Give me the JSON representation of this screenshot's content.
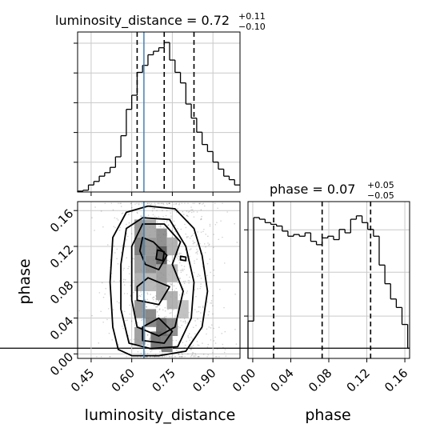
{
  "chart_data": [
    {
      "type": "histogram",
      "panel": "luminosity_distance-marginal",
      "title": {
        "name": "luminosity_distance",
        "median": "0.72",
        "plus": "+0.11",
        "minus": "−0.10"
      },
      "xlim": [
        0.4,
        1.0
      ],
      "x_ticks": [
        0.45,
        0.6,
        0.75,
        0.9
      ],
      "quantile_lines": [
        0.62,
        0.72,
        0.83
      ],
      "truth_line": 0.645,
      "line_color": "#000000",
      "truth_color": "#4682b4",
      "bin_edges": [
        0.4,
        0.42,
        0.44,
        0.46,
        0.48,
        0.5,
        0.52,
        0.54,
        0.56,
        0.58,
        0.6,
        0.62,
        0.64,
        0.66,
        0.68,
        0.7,
        0.72,
        0.74,
        0.76,
        0.78,
        0.8,
        0.82,
        0.84,
        0.86,
        0.88,
        0.9,
        0.92,
        0.94,
        0.96,
        0.98,
        1.0
      ],
      "counts": [
        0.5,
        1,
        4,
        6,
        9,
        11,
        14,
        20,
        32,
        47,
        55,
        68,
        72,
        78,
        80,
        82,
        85,
        75,
        68,
        62,
        50,
        42,
        34,
        27,
        23,
        17,
        13,
        9,
        7,
        4
      ]
    },
    {
      "type": "histogram",
      "panel": "phase-marginal",
      "title": {
        "name": "phase",
        "median": "0.07",
        "plus": "+0.05",
        "minus": "−0.05"
      },
      "xlim": [
        -0.005,
        0.165
      ],
      "x_ticks": [
        0.0,
        0.04,
        0.08,
        0.12,
        0.16
      ],
      "x_tick_labels": [
        "0.00",
        "0.04",
        "0.08",
        "0.12",
        "0.16"
      ],
      "xlabel": "phase",
      "quantile_lines": [
        0.022,
        0.073,
        0.124
      ],
      "line_color": "#000000",
      "bin_edges": [
        -0.005,
        0.001,
        0.007,
        0.013,
        0.019,
        0.025,
        0.031,
        0.037,
        0.043,
        0.049,
        0.055,
        0.061,
        0.067,
        0.073,
        0.079,
        0.085,
        0.091,
        0.097,
        0.103,
        0.109,
        0.115,
        0.121,
        0.127,
        0.133,
        0.139,
        0.145,
        0.151,
        0.157,
        0.163,
        0.165
      ],
      "counts": [
        22,
        83,
        82,
        80,
        79,
        78,
        75,
        72,
        73,
        72,
        74,
        69,
        67,
        71,
        72,
        70,
        76,
        74,
        82,
        84,
        80,
        76,
        72,
        55,
        44,
        35,
        30,
        20,
        6,
        6
      ]
    },
    {
      "type": "scatter",
      "panel": "joint",
      "xlabel": "luminosity_distance",
      "ylabel": "phase",
      "xlim": [
        0.4,
        1.0
      ],
      "ylim": [
        -0.005,
        0.17
      ],
      "x_ticks": [
        0.45,
        0.6,
        0.75,
        0.9
      ],
      "x_tick_labels": [
        "0.45",
        "0.60",
        "0.75",
        "0.90"
      ],
      "y_ticks": [
        0.0,
        0.04,
        0.08,
        0.12,
        0.16
      ],
      "y_tick_labels": [
        "0.00",
        "0.04",
        "0.08",
        "0.12",
        "0.16"
      ],
      "truth_line": 0.645,
      "truth_color": "#4682b4",
      "density_cells": [
        {
          "x": 0.63,
          "y": 0.14,
          "v": 0.55
        },
        {
          "x": 0.67,
          "y": 0.14,
          "v": 0.45
        },
        {
          "x": 0.71,
          "y": 0.13,
          "v": 0.6
        },
        {
          "x": 0.63,
          "y": 0.12,
          "v": 0.7
        },
        {
          "x": 0.67,
          "y": 0.12,
          "v": 0.55
        },
        {
          "x": 0.71,
          "y": 0.11,
          "v": 0.9
        },
        {
          "x": 0.75,
          "y": 0.12,
          "v": 0.4
        },
        {
          "x": 0.63,
          "y": 0.1,
          "v": 0.5
        },
        {
          "x": 0.67,
          "y": 0.1,
          "v": 0.6
        },
        {
          "x": 0.71,
          "y": 0.09,
          "v": 0.5
        },
        {
          "x": 0.75,
          "y": 0.09,
          "v": 0.35
        },
        {
          "x": 0.63,
          "y": 0.08,
          "v": 0.4
        },
        {
          "x": 0.67,
          "y": 0.08,
          "v": 0.35
        },
        {
          "x": 0.71,
          "y": 0.07,
          "v": 0.45
        },
        {
          "x": 0.75,
          "y": 0.06,
          "v": 0.4
        },
        {
          "x": 0.63,
          "y": 0.05,
          "v": 0.55
        },
        {
          "x": 0.67,
          "y": 0.04,
          "v": 0.65
        },
        {
          "x": 0.71,
          "y": 0.03,
          "v": 0.8
        },
        {
          "x": 0.75,
          "y": 0.03,
          "v": 0.6
        },
        {
          "x": 0.69,
          "y": 0.015,
          "v": 0.75
        },
        {
          "x": 0.73,
          "y": 0.012,
          "v": 0.7
        },
        {
          "x": 0.63,
          "y": 0.02,
          "v": 0.5
        },
        {
          "x": 0.79,
          "y": 0.05,
          "v": 0.3
        }
      ],
      "contours": [
        [
          [
            0.55,
            0.005
          ],
          [
            0.6,
            -0.002
          ],
          [
            0.7,
            -0.002
          ],
          [
            0.8,
            0.003
          ],
          [
            0.86,
            0.03
          ],
          [
            0.88,
            0.07
          ],
          [
            0.86,
            0.11
          ],
          [
            0.83,
            0.14
          ],
          [
            0.76,
            0.162
          ],
          [
            0.66,
            0.165
          ],
          [
            0.58,
            0.158
          ],
          [
            0.53,
            0.13
          ],
          [
            0.52,
            0.08
          ],
          [
            0.53,
            0.03
          ]
        ],
        [
          [
            0.59,
            0.012
          ],
          [
            0.67,
            0.006
          ],
          [
            0.77,
            0.008
          ],
          [
            0.82,
            0.04
          ],
          [
            0.83,
            0.08
          ],
          [
            0.8,
            0.12
          ],
          [
            0.74,
            0.15
          ],
          [
            0.64,
            0.152
          ],
          [
            0.58,
            0.14
          ],
          [
            0.56,
            0.1
          ],
          [
            0.56,
            0.05
          ]
        ],
        [
          [
            0.62,
            0.03
          ],
          [
            0.7,
            0.02
          ],
          [
            0.76,
            0.03
          ],
          [
            0.79,
            0.07
          ],
          [
            0.75,
            0.1
          ],
          [
            0.78,
            0.125
          ],
          [
            0.72,
            0.145
          ],
          [
            0.64,
            0.145
          ],
          [
            0.6,
            0.12
          ],
          [
            0.6,
            0.06
          ]
        ],
        [
          [
            0.64,
            0.015
          ],
          [
            0.72,
            0.012
          ],
          [
            0.75,
            0.025
          ],
          [
            0.7,
            0.04
          ],
          [
            0.64,
            0.03
          ]
        ],
        [
          [
            0.62,
            0.06
          ],
          [
            0.7,
            0.055
          ],
          [
            0.74,
            0.075
          ],
          [
            0.66,
            0.085
          ],
          [
            0.62,
            0.075
          ]
        ],
        [
          [
            0.65,
            0.1
          ],
          [
            0.7,
            0.094
          ],
          [
            0.73,
            0.11
          ],
          [
            0.68,
            0.125
          ],
          [
            0.64,
            0.13
          ],
          [
            0.63,
            0.115
          ]
        ],
        [
          [
            0.69,
            0.106
          ],
          [
            0.715,
            0.104
          ],
          [
            0.72,
            0.114
          ],
          [
            0.695,
            0.116
          ]
        ],
        [
          [
            0.78,
            0.105
          ],
          [
            0.8,
            0.104
          ],
          [
            0.8,
            0.108
          ],
          [
            0.78,
            0.109
          ]
        ]
      ]
    }
  ]
}
